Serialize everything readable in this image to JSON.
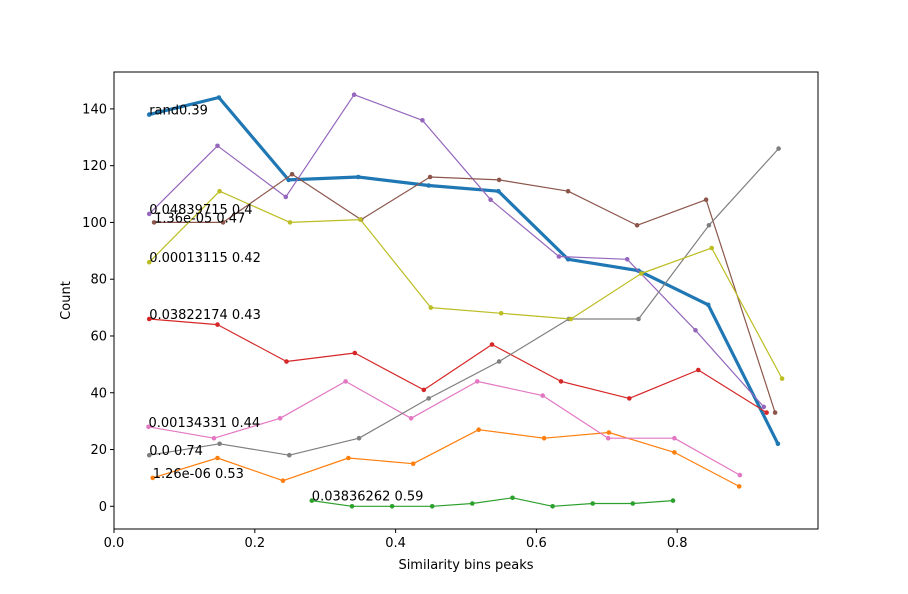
{
  "chart_data": {
    "type": "line",
    "title": "",
    "xlabel": "Similarity bins peaks",
    "ylabel": "Count",
    "xlim": [
      0.0,
      1.0
    ],
    "ylim": [
      -8,
      153
    ],
    "xticks": [
      0.0,
      0.2,
      0.4,
      0.6,
      0.8
    ],
    "xtick_labels": [
      "0.0",
      "0.2",
      "0.4",
      "0.6",
      "0.8"
    ],
    "yticks": [
      0,
      20,
      40,
      60,
      80,
      100,
      120,
      140
    ],
    "ytick_labels": [
      "0",
      "20",
      "40",
      "60",
      "80",
      "100",
      "120",
      "140"
    ],
    "grid": false,
    "legend": "none",
    "series": [
      {
        "color": "#1f77b4",
        "width": 3.2,
        "label": "rand0.39",
        "x": [
          0.05,
          0.149,
          0.248,
          0.347,
          0.447,
          0.546,
          0.645,
          0.745,
          0.844,
          0.943
        ],
        "y": [
          138,
          144,
          115,
          116,
          113,
          111,
          87,
          83,
          71,
          22
        ]
      },
      {
        "color": "#ff7f0e",
        "width": 1.2,
        "label": "1.26e-06 0.53",
        "x": [
          0.055,
          0.147,
          0.24,
          0.333,
          0.425,
          0.518,
          0.611,
          0.703,
          0.796,
          0.888
        ],
        "y": [
          10,
          17,
          9,
          17,
          15,
          27,
          24,
          26,
          19,
          7
        ]
      },
      {
        "color": "#2ca02c",
        "width": 1.2,
        "label": "0.03836262 0.59",
        "x": [
          0.281,
          0.338,
          0.395,
          0.452,
          0.509,
          0.566,
          0.623,
          0.68,
          0.737,
          0.794
        ],
        "y": [
          2,
          0,
          0,
          0,
          1,
          3,
          0,
          1,
          1,
          2
        ]
      },
      {
        "color": "#d62728",
        "width": 1.2,
        "label": "0.03822174 0.43",
        "x": [
          0.05,
          0.147,
          0.245,
          0.342,
          0.44,
          0.537,
          0.635,
          0.732,
          0.83,
          0.927
        ],
        "y": [
          66,
          64,
          51,
          54,
          41,
          57,
          44,
          38,
          48,
          33
        ]
      },
      {
        "color": "#9467bd",
        "width": 1.2,
        "label": "0.04839715 0.4",
        "x": [
          0.05,
          0.147,
          0.244,
          0.341,
          0.438,
          0.535,
          0.632,
          0.729,
          0.826,
          0.923
        ],
        "y": [
          103,
          127,
          109,
          145,
          136,
          108,
          88,
          87,
          62,
          35
        ]
      },
      {
        "color": "#8c564b",
        "width": 1.2,
        "label": "1.36e-05 0.47",
        "x": [
          0.057,
          0.155,
          0.253,
          0.351,
          0.449,
          0.547,
          0.645,
          0.743,
          0.841,
          0.939
        ],
        "y": [
          100,
          100,
          117,
          101,
          116,
          115,
          111,
          99,
          108,
          33
        ]
      },
      {
        "color": "#e377c2",
        "width": 1.2,
        "label": "0.00134331 0.44",
        "x": [
          0.049,
          0.142,
          0.236,
          0.329,
          0.422,
          0.516,
          0.609,
          0.702,
          0.796,
          0.889
        ],
        "y": [
          28,
          24,
          31,
          44,
          31,
          44,
          39,
          24,
          24,
          11
        ]
      },
      {
        "color": "#7f7f7f",
        "width": 1.2,
        "label": "0.0 0.74",
        "x": [
          0.05,
          0.15,
          0.249,
          0.348,
          0.447,
          0.547,
          0.646,
          0.745,
          0.845,
          0.944
        ],
        "y": [
          18,
          22,
          18,
          24,
          38,
          51,
          66,
          66,
          99,
          126
        ]
      },
      {
        "color": "#bcbd22",
        "width": 1.2,
        "label": "0.00013115 0.42",
        "x": [
          0.05,
          0.15,
          0.25,
          0.35,
          0.45,
          0.55,
          0.649,
          0.749,
          0.849,
          0.949
        ],
        "y": [
          86,
          111,
          100,
          101,
          70,
          68,
          66,
          82,
          91,
          45
        ]
      }
    ]
  }
}
